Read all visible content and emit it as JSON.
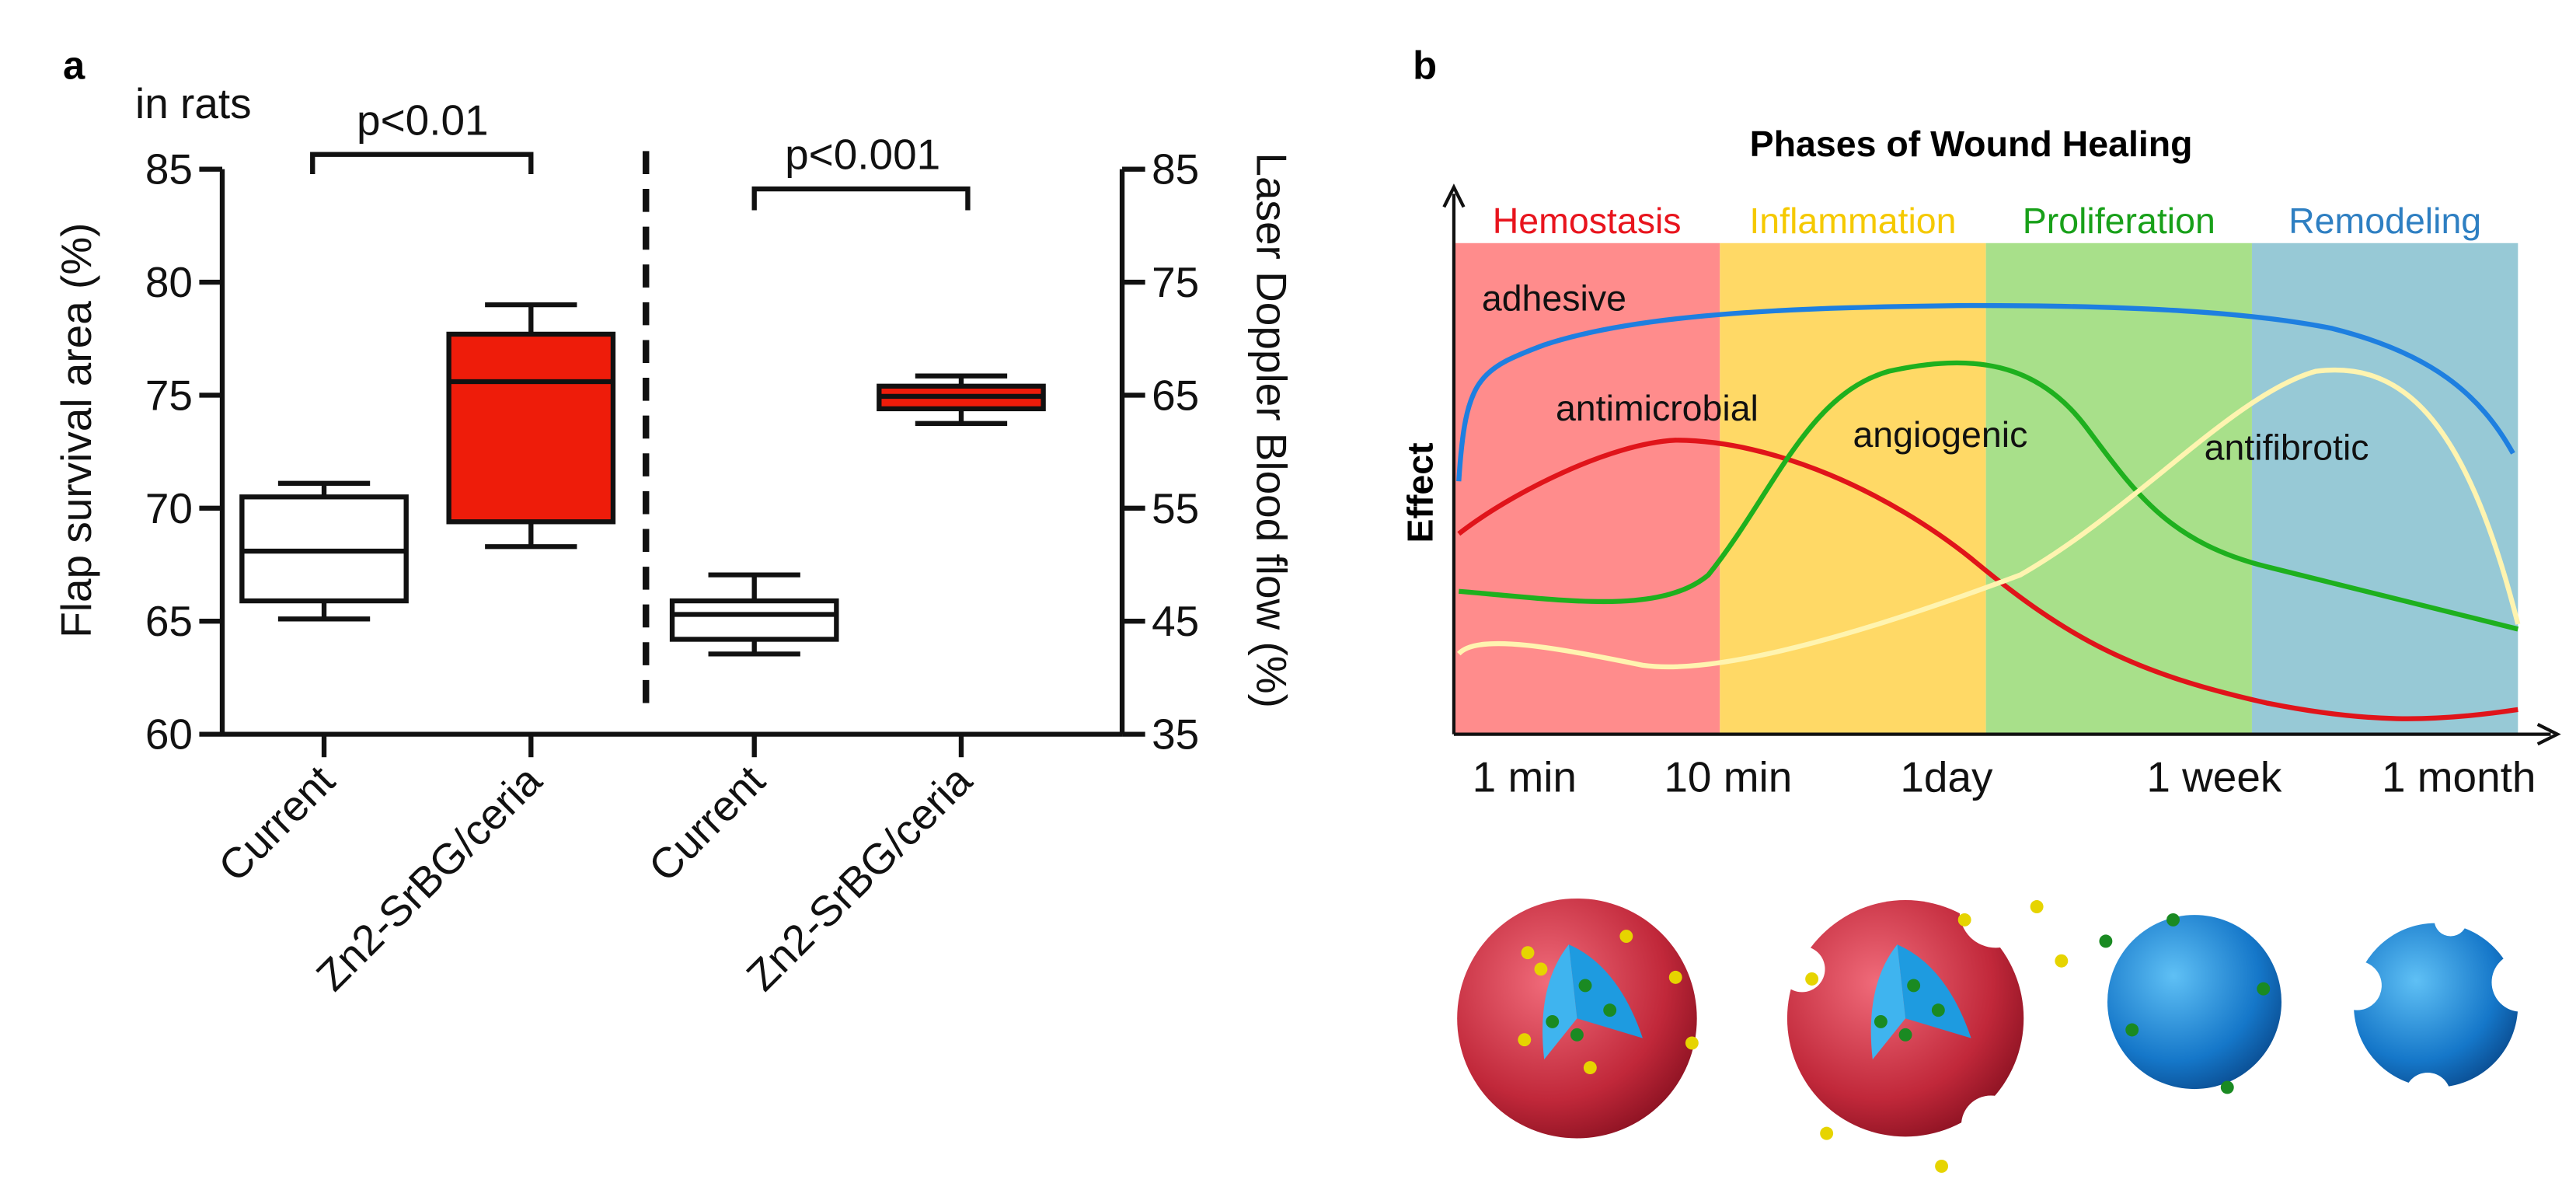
{
  "panel_labels": [
    "a",
    "b"
  ],
  "chart_data": {
    "type": "box",
    "annotation": "in rats",
    "y_label": "Flap survival area (%)",
    "y2_label": "Laser Doppler Blood flow (%)",
    "categories": [
      "Current",
      "Zn2-SrBG/ceria",
      "Current",
      "Zn2-SrBG/ceria"
    ],
    "ylim": [
      60,
      85
    ],
    "yticks": [
      60,
      65,
      70,
      75,
      80,
      85
    ],
    "y2lim": [
      35,
      85
    ],
    "y2ticks": [
      35,
      45,
      55,
      65,
      75,
      85
    ],
    "boxes": [
      {
        "axis": "y",
        "color": "#ffffff",
        "min": 65.1,
        "q1": 65.9,
        "median": 68.1,
        "q3": 70.5,
        "max": 71.1
      },
      {
        "axis": "y",
        "color": "#ee1c0a",
        "min": 68.3,
        "q1": 69.4,
        "median": 75.6,
        "q3": 77.7,
        "max": 79.0
      },
      {
        "axis": "y2",
        "color": "#ffffff",
        "min": 42.1,
        "q1": 43.4,
        "median": 45.6,
        "q3": 46.8,
        "max": 49.1
      },
      {
        "axis": "y2",
        "color": "#ee1c0a",
        "min": 62.5,
        "q1": 63.8,
        "median": 64.9,
        "q3": 65.8,
        "max": 66.7
      }
    ],
    "significance": [
      "p<0.01",
      "p<0.001"
    ]
  },
  "diagram": {
    "title": "Phases of Wound Healing",
    "y_label": "Effect",
    "phases": [
      "Hemostasis",
      "Inflammation",
      "Proliferation",
      "Remodeling"
    ],
    "curves": [
      "adhesive",
      "antimicrobial",
      "angiogenic",
      "antifibrotic"
    ],
    "x_labels": [
      "1 min",
      "10 min",
      "1day",
      "1 week",
      "1 month"
    ]
  }
}
